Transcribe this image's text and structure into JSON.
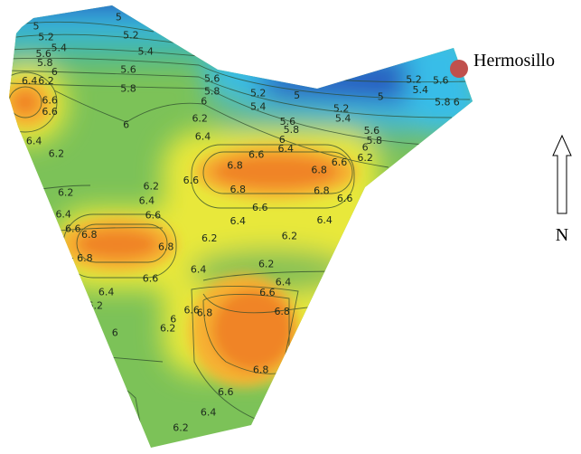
{
  "map": {
    "city_label": "Hermosillo",
    "north_label": "N",
    "colors": {
      "city_marker": "#c0504d",
      "high": "#f08428",
      "mid": "#f4ec28",
      "low_green": "#5cb060",
      "low": "#2a5cc0"
    },
    "contour_values": [
      "5",
      "5.2",
      "5.4",
      "5.6",
      "5.8",
      "6",
      "6.2",
      "6.4",
      "6.6",
      "6.8"
    ],
    "contour_labels": [
      "5",
      "5",
      "5.2",
      "5.4",
      "5.2",
      "5.4",
      "5.6",
      "5.8",
      "6",
      "6.2",
      "6.4",
      "6.6",
      "6.6",
      "5.6",
      "5.8",
      "6",
      "6.4",
      "6.2",
      "5.6",
      "5.8",
      "6",
      "6.2",
      "6.4",
      "5.2",
      "5.4",
      "5",
      "5",
      "5.2",
      "5.4",
      "5.6",
      "5.8",
      "6",
      "6.4",
      "5.6",
      "5.8",
      "6",
      "6.2",
      "5.2",
      "5.4",
      "5.6",
      "5.8",
      "6",
      "6.6",
      "6.8",
      "6.8",
      "6.6",
      "6.8",
      "6.8",
      "6.6",
      "6.6",
      "6.6",
      "6.2",
      "6.2",
      "6.4",
      "6.4",
      "6.6",
      "6.6",
      "6.8",
      "6.8",
      "6.8",
      "6.6",
      "6.6",
      "6.4",
      "6.4",
      "6.2",
      "6.2",
      "6.2",
      "6.4",
      "6.4",
      "6.6",
      "6.8",
      "6.4",
      "6.2",
      "6",
      "6.6",
      "6.8",
      "6.2",
      "6",
      "6.8",
      "6.6",
      "6.4",
      "6.2",
      "6"
    ]
  }
}
